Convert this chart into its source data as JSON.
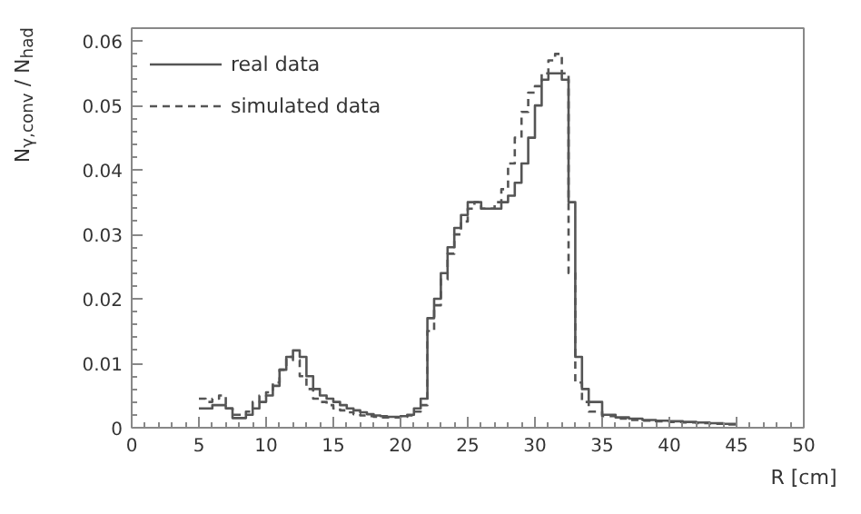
{
  "chart_data": {
    "type": "step",
    "xlabel": "R [cm]",
    "ylabel": "N$_{γ,conv}$ / N$_{had}$",
    "x": [
      5,
      5.5,
      6,
      6.5,
      7,
      7.5,
      8,
      8.5,
      9,
      9.5,
      10,
      10.5,
      11,
      11.5,
      12,
      12.5,
      13,
      13.5,
      14,
      14.5,
      15,
      15.5,
      16,
      16.5,
      17,
      17.5,
      18,
      18.5,
      19,
      19.5,
      20,
      20.5,
      21,
      21.5,
      22,
      22.5,
      23,
      23.5,
      24,
      24.5,
      25,
      25.5,
      26,
      26.5,
      27,
      27.5,
      28,
      28.5,
      29,
      29.5,
      30,
      30.5,
      31,
      31.5,
      32,
      32.5,
      33,
      33.5,
      34,
      35,
      36,
      37,
      38,
      39,
      40,
      41,
      42,
      43,
      44,
      45
    ],
    "series": [
      {
        "name": "real data",
        "color": "#555555",
        "line_style": "solid",
        "values": [
          0.003,
          0.003,
          0.0035,
          0.0035,
          0.003,
          0.0015,
          0.0015,
          0.002,
          0.003,
          0.004,
          0.005,
          0.0065,
          0.009,
          0.011,
          0.012,
          0.011,
          0.008,
          0.006,
          0.005,
          0.0045,
          0.004,
          0.0035,
          0.003,
          0.0027,
          0.0024,
          0.0021,
          0.0019,
          0.0018,
          0.0017,
          0.0017,
          0.0018,
          0.002,
          0.003,
          0.0045,
          0.017,
          0.02,
          0.024,
          0.028,
          0.031,
          0.033,
          0.035,
          0.035,
          0.034,
          0.034,
          0.034,
          0.035,
          0.036,
          0.038,
          0.041,
          0.045,
          0.05,
          0.054,
          0.055,
          0.055,
          0.054,
          0.035,
          0.011,
          0.006,
          0.004,
          0.002,
          0.0016,
          0.0014,
          0.0012,
          0.0011,
          0.001,
          0.0009,
          0.0008,
          0.0007,
          0.0006,
          0.0006
        ]
      },
      {
        "name": "simulated data",
        "color": "#555555",
        "line_style": "dashed",
        "values": [
          0.0045,
          0.004,
          0.0045,
          0.005,
          0.003,
          0.002,
          0.002,
          0.0025,
          0.004,
          0.005,
          0.0055,
          0.007,
          0.009,
          0.011,
          0.0105,
          0.008,
          0.006,
          0.0045,
          0.004,
          0.0035,
          0.003,
          0.0027,
          0.0024,
          0.0021,
          0.0019,
          0.0018,
          0.0017,
          0.0016,
          0.0016,
          0.0016,
          0.0017,
          0.0019,
          0.0025,
          0.0035,
          0.015,
          0.019,
          0.023,
          0.027,
          0.03,
          0.032,
          0.034,
          0.035,
          0.034,
          0.034,
          0.035,
          0.037,
          0.041,
          0.045,
          0.049,
          0.052,
          0.053,
          0.055,
          0.057,
          0.058,
          0.055,
          0.024,
          0.007,
          0.004,
          0.0025,
          0.0018,
          0.0014,
          0.0012,
          0.0011,
          0.001,
          0.0009,
          0.0008,
          0.0007,
          0.0006,
          0.0005,
          0.0005
        ]
      }
    ],
    "xlim": [
      0,
      50
    ],
    "xticks": [
      0,
      5,
      10,
      15,
      20,
      25,
      30,
      35,
      40,
      45,
      50
    ],
    "ylim": [
      0,
      0.062
    ],
    "yticks": [
      0,
      {
        "value": 0.01,
        "label": "0.01"
      },
      {
        "value": 0.02,
        "label": "0.02"
      },
      {
        "value": 0.03,
        "label": "0.03"
      },
      {
        "value": 0.04,
        "label": "0.04"
      },
      {
        "value": 0.05,
        "label": "0.05"
      },
      {
        "value": 0.06,
        "label": "0.06"
      }
    ],
    "grid": false,
    "legend": "top left"
  }
}
